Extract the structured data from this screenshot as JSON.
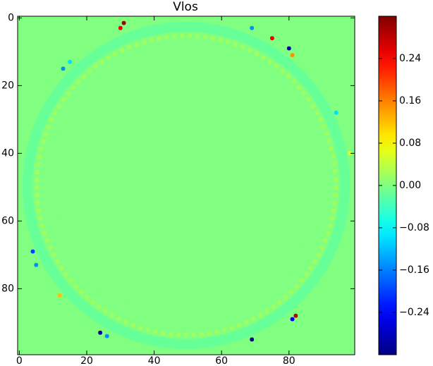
{
  "chart_data": {
    "type": "heatmap",
    "title": "Vlos",
    "x": [
      31,
      30,
      75,
      80,
      81,
      69,
      13,
      15,
      94,
      98,
      4,
      5,
      12,
      82,
      81,
      24,
      26,
      69
    ],
    "y": [
      1.5,
      3,
      6,
      9,
      11,
      3,
      15,
      13,
      28,
      40,
      69,
      73,
      82,
      88,
      89,
      93,
      94,
      95
    ],
    "values": [
      0.3,
      0.25,
      0.25,
      -0.3,
      0.15,
      -0.15,
      -0.15,
      -0.1,
      -0.1,
      0.06,
      -0.2,
      -0.15,
      0.12,
      0.28,
      -0.25,
      -0.3,
      -0.15,
      -0.3
    ],
    "xlim": [
      -0.5,
      99.5
    ],
    "ylim": [
      99.5,
      -0.5
    ],
    "xticks": [
      0,
      20,
      40,
      60,
      80
    ],
    "yticks": [
      0,
      20,
      40,
      60,
      80
    ],
    "colormap": "jet",
    "clim": [
      -0.32,
      0.32
    ],
    "cticks": [
      {
        "value": -0.24,
        "label": "−0.24"
      },
      {
        "value": -0.16,
        "label": "−0.16"
      },
      {
        "value": -0.08,
        "label": "−0.08"
      },
      {
        "value": 0,
        "label": "0.00"
      },
      0.08,
      0.16,
      0.24
    ]
  }
}
